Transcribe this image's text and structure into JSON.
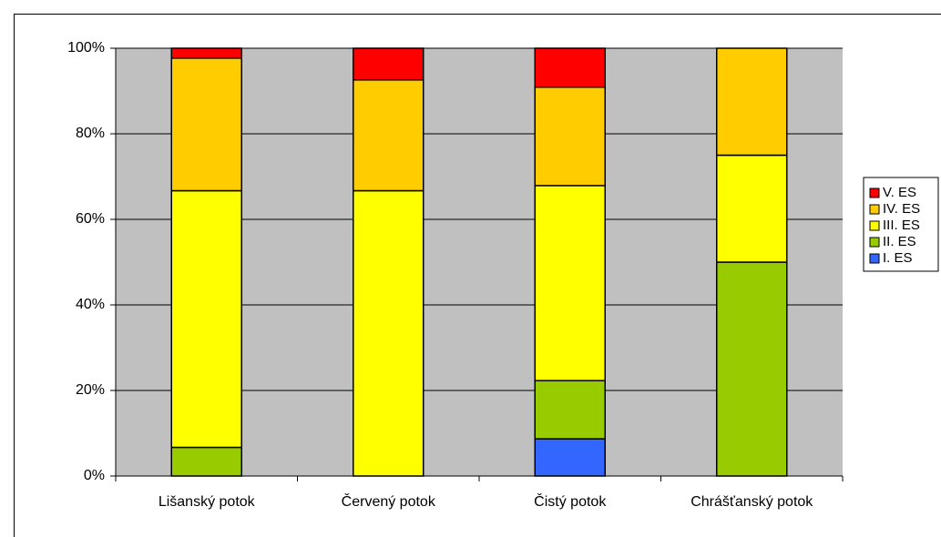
{
  "chart_data": {
    "type": "bar",
    "stacked": true,
    "categories": [
      "Lišanský potok",
      "Červený potok",
      "Čistý potok",
      "Chrášťanský potok"
    ],
    "series": [
      {
        "name": "I. ES",
        "color": "#3366ff",
        "values": [
          0,
          0,
          8.7,
          0
        ]
      },
      {
        "name": "II. ES",
        "color": "#99cc00",
        "values": [
          6.7,
          0,
          13.6,
          50
        ]
      },
      {
        "name": "III. ES",
        "color": "#ffff00",
        "values": [
          60,
          66.7,
          45.6,
          25
        ]
      },
      {
        "name": "IV. ES",
        "color": "#ffcc00",
        "values": [
          31,
          25.9,
          23,
          25
        ]
      },
      {
        "name": "V. ES",
        "color": "#ff0000",
        "values": [
          2.3,
          7.4,
          9.1,
          0
        ]
      }
    ],
    "ylim": [
      0,
      100
    ],
    "yticks": [
      {
        "value": 0,
        "label": "0%"
      },
      {
        "value": 20,
        "label": "20%"
      },
      {
        "value": 40,
        "label": "40%"
      },
      {
        "value": 60,
        "label": "60%"
      },
      {
        "value": 80,
        "label": "80%"
      },
      {
        "value": 100,
        "label": "100%"
      }
    ],
    "grid": true,
    "legend": "right",
    "plot_background": "#c0c0c0"
  }
}
